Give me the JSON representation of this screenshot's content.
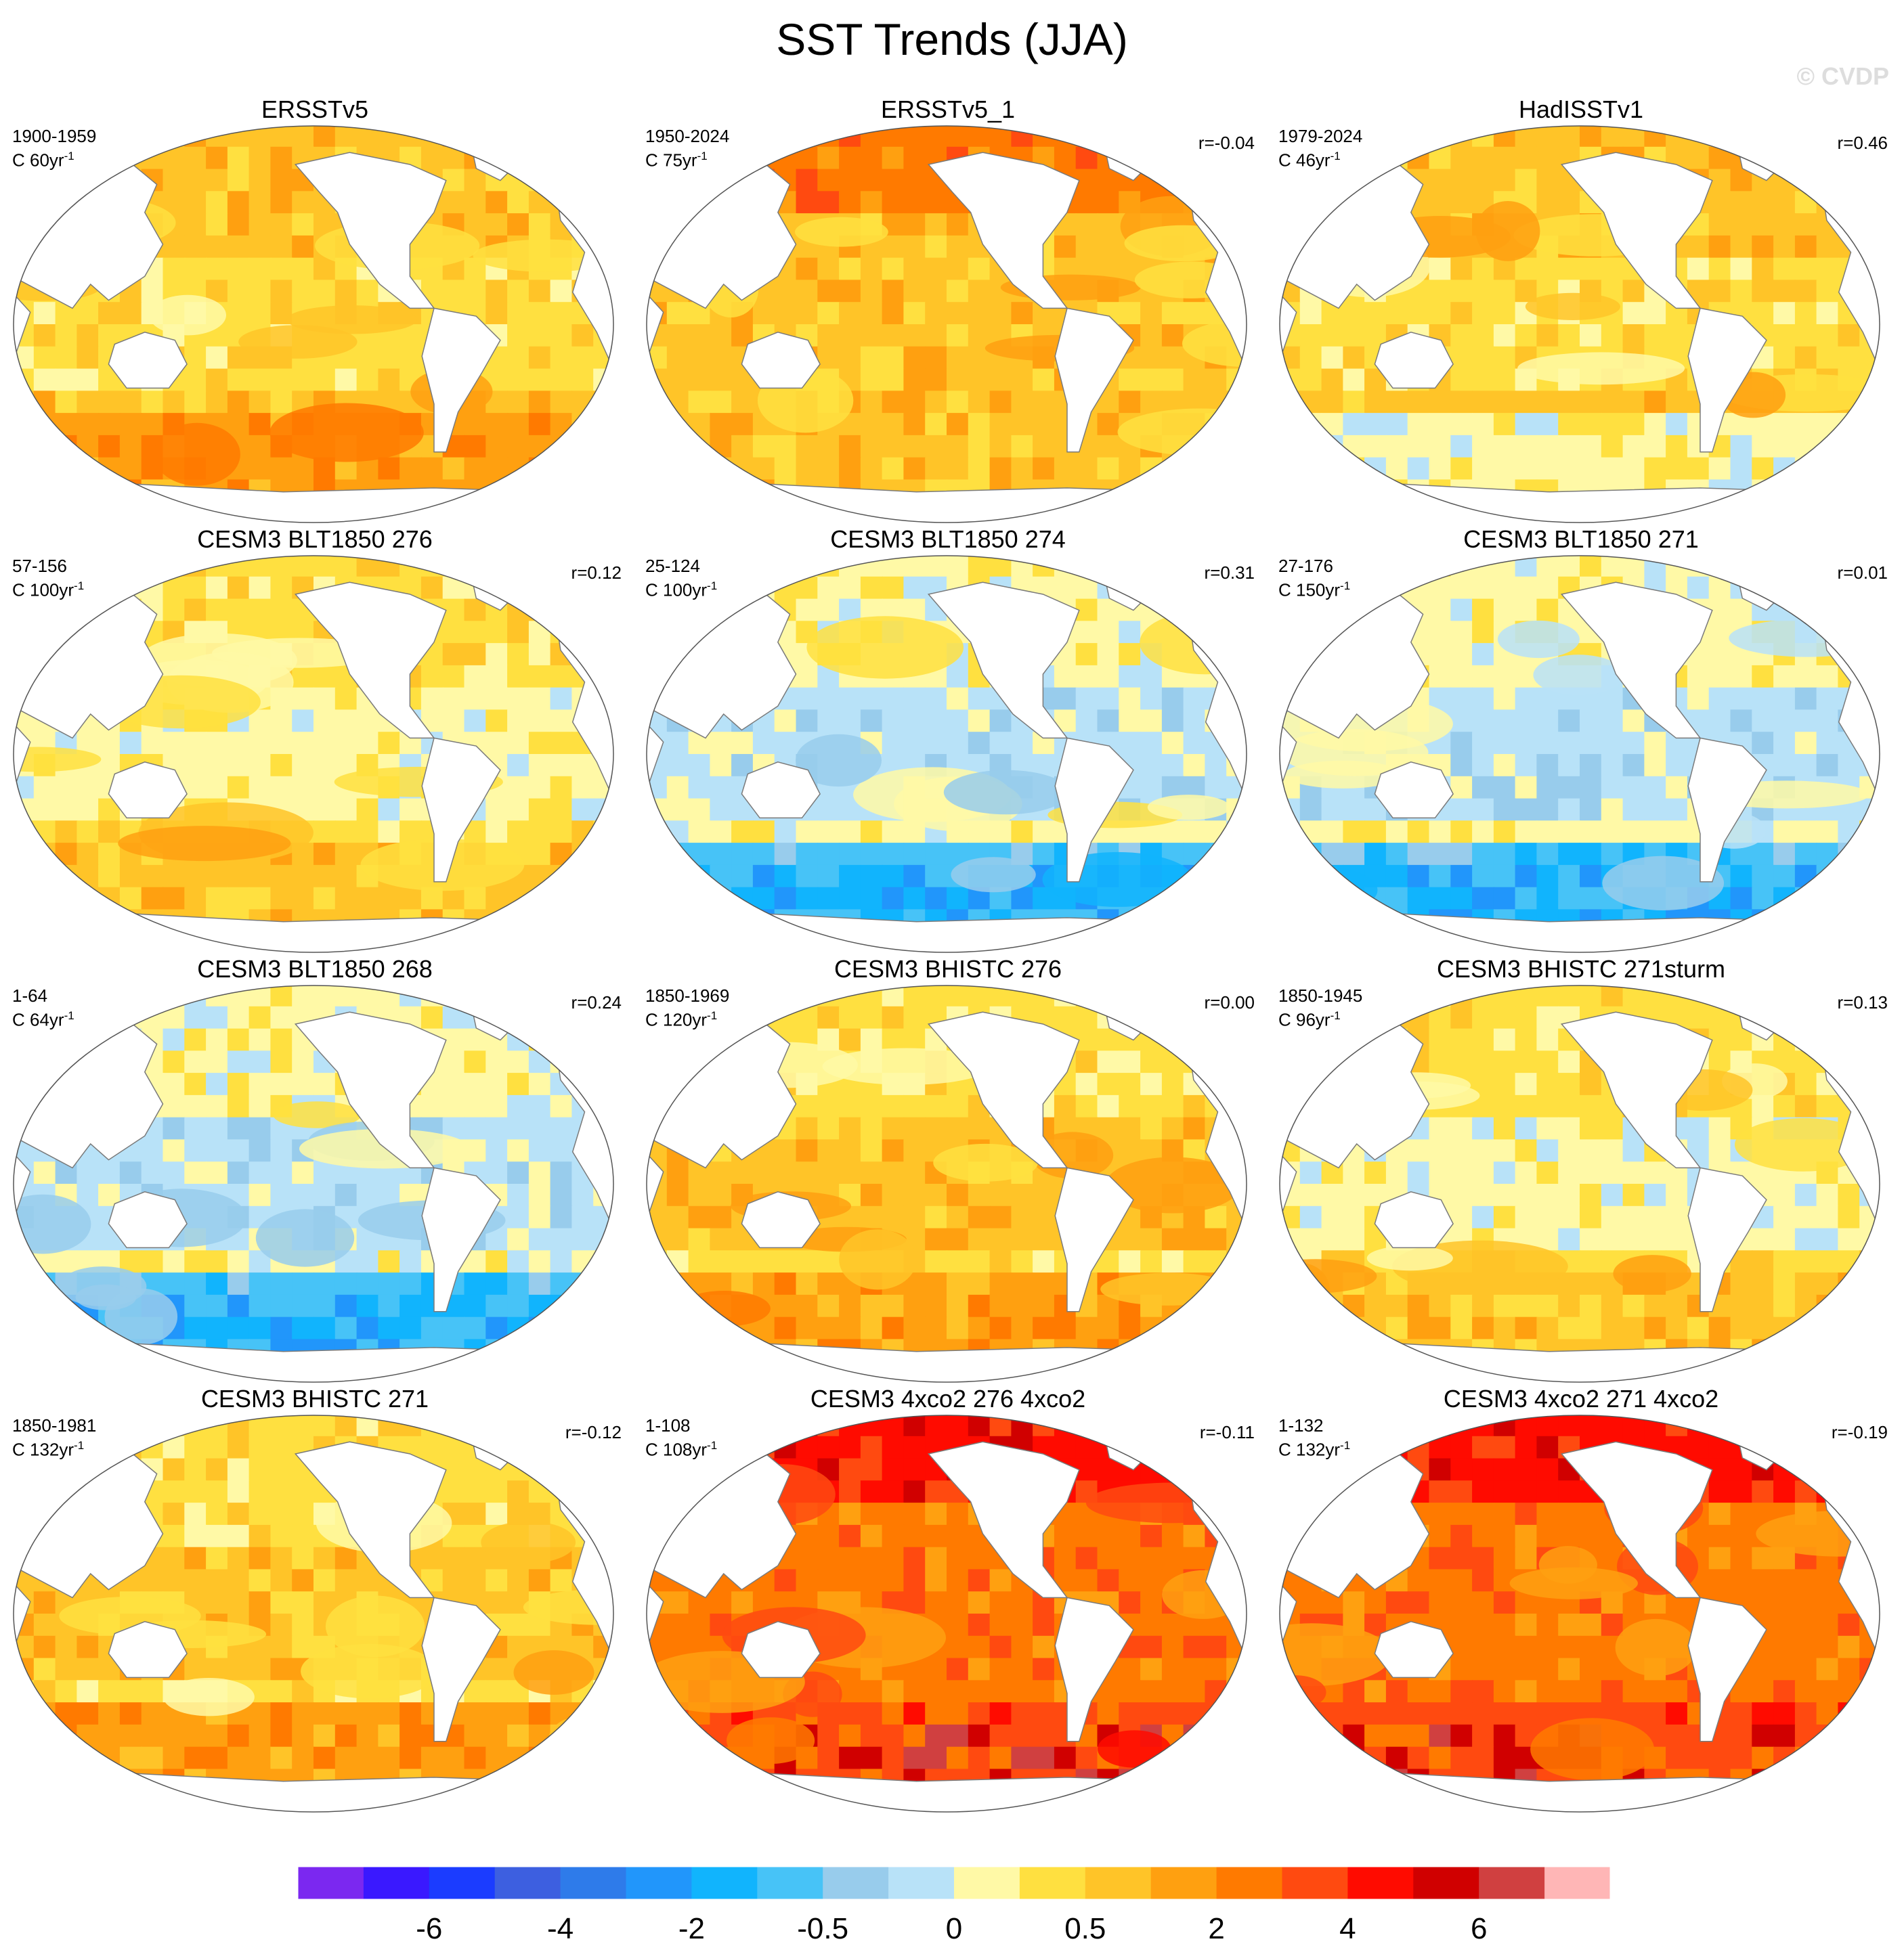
{
  "figure": {
    "title": "SST Trends (JJA)",
    "watermark": "© CVDP"
  },
  "colors": {
    "palette": [
      "#7b28f0",
      "#3a18ff",
      "#1b3cff",
      "#3d5fe0",
      "#2e7bea",
      "#2196fb",
      "#11b4fd",
      "#47c3f7",
      "#98ccec",
      "#b8e2f8",
      "#fff9a6",
      "#ffe040",
      "#ffc428",
      "#ffa010",
      "#ff7a00",
      "#ff4a10",
      "#ff0b00",
      "#d00000",
      "#d04040",
      "#ffb6b6"
    ],
    "land": "#ffffff",
    "coast": "#7a7a7a"
  },
  "panels": [
    {
      "title": "ERSSTv5",
      "period": "1900-1959",
      "scale": "C 60yr",
      "scale_exp": "-1",
      "r": "",
      "pattern": "obs1"
    },
    {
      "title": "ERSSTv5_1",
      "period": "1950-2024",
      "scale": "C 75yr",
      "scale_exp": "-1",
      "r": "r=-0.04",
      "pattern": "obs2"
    },
    {
      "title": "HadISSTv1",
      "period": "1979-2024",
      "scale": "C 46yr",
      "scale_exp": "-1",
      "r": "r=0.46",
      "pattern": "obs3"
    },
    {
      "title": "CESM3 BLT1850 276",
      "period": "57-156",
      "scale": "C 100yr",
      "scale_exp": "-1",
      "r": "r=0.12",
      "pattern": "mixed"
    },
    {
      "title": "CESM3 BLT1850 274",
      "period": "25-124",
      "scale": "C 100yr",
      "scale_exp": "-1",
      "r": "r=0.31",
      "pattern": "cold"
    },
    {
      "title": "CESM3 BLT1850 271",
      "period": "27-176",
      "scale": "C 150yr",
      "scale_exp": "-1",
      "r": "r=0.01",
      "pattern": "cold"
    },
    {
      "title": "CESM3 BLT1850 268",
      "period": "1-64",
      "scale": "C 64yr",
      "scale_exp": "-1",
      "r": "r=0.24",
      "pattern": "cold"
    },
    {
      "title": "CESM3 BHISTC 276",
      "period": "1850-1969",
      "scale": "C 120yr",
      "scale_exp": "-1",
      "r": "r=0.00",
      "pattern": "warm"
    },
    {
      "title": "CESM3 BHISTC 271sturm",
      "period": "1850-1945",
      "scale": "C 96yr",
      "scale_exp": "-1",
      "r": "r=0.13",
      "pattern": "mixed"
    },
    {
      "title": "CESM3 BHISTC 271",
      "period": "1850-1981",
      "scale": "C 132yr",
      "scale_exp": "-1",
      "r": "r=-0.12",
      "pattern": "warm"
    },
    {
      "title": "CESM3 4xco2 276 4xco2",
      "period": "1-108",
      "scale": "C 108yr",
      "scale_exp": "-1",
      "r": "r=-0.11",
      "pattern": "hot"
    },
    {
      "title": "CESM3 4xco2 271 4xco2",
      "period": "1-132",
      "scale": "C 132yr",
      "scale_exp": "-1",
      "r": "r=-0.19",
      "pattern": "hot"
    }
  ],
  "chart_data": {
    "type": "heatmap",
    "title": "SST Trends (JJA)",
    "projection": "Robinson global map, Pacific-centered",
    "colorbar": {
      "levels": [
        -7,
        -6,
        -5,
        -4,
        -3,
        -2,
        -1,
        -0.5,
        -0.2,
        0,
        0.2,
        0.5,
        1,
        2,
        3,
        4,
        5,
        6,
        7
      ],
      "tick_labels": [
        "-6",
        "-4",
        "-2",
        "-0.5",
        "0",
        "0.5",
        "2",
        "4",
        "6"
      ],
      "tick_levels": [
        -6,
        -4,
        -2,
        -0.5,
        0,
        0.5,
        2,
        4,
        6
      ],
      "units": "C per record length"
    },
    "panels": [
      {
        "title": "ERSSTv5",
        "period": "1900-1959",
        "trend_unit": "C 60yr-1",
        "r": null
      },
      {
        "title": "ERSSTv5_1",
        "period": "1950-2024",
        "trend_unit": "C 75yr-1",
        "r": -0.04
      },
      {
        "title": "HadISSTv1",
        "period": "1979-2024",
        "trend_unit": "C 46yr-1",
        "r": 0.46
      },
      {
        "title": "CESM3 BLT1850 276",
        "period": "57-156",
        "trend_unit": "C 100yr-1",
        "r": 0.12
      },
      {
        "title": "CESM3 BLT1850 274",
        "period": "25-124",
        "trend_unit": "C 100yr-1",
        "r": 0.31
      },
      {
        "title": "CESM3 BLT1850 271",
        "period": "27-176",
        "trend_unit": "C 150yr-1",
        "r": 0.01
      },
      {
        "title": "CESM3 BLT1850 268",
        "period": "1-64",
        "trend_unit": "C 64yr-1",
        "r": 0.24
      },
      {
        "title": "CESM3 BHISTC 276",
        "period": "1850-1969",
        "trend_unit": "C 120yr-1",
        "r": 0.0
      },
      {
        "title": "CESM3 BHISTC 271sturm",
        "period": "1850-1945",
        "trend_unit": "C 96yr-1",
        "r": 0.13
      },
      {
        "title": "CESM3 BHISTC 271",
        "period": "1850-1981",
        "trend_unit": "C 132yr-1",
        "r": -0.12
      },
      {
        "title": "CESM3 4xco2 276 4xco2",
        "period": "1-108",
        "trend_unit": "C 108yr-1",
        "r": -0.11
      },
      {
        "title": "CESM3 4xco2 271 4xco2",
        "period": "1-132",
        "trend_unit": "C 132yr-1",
        "r": -0.19
      }
    ]
  }
}
